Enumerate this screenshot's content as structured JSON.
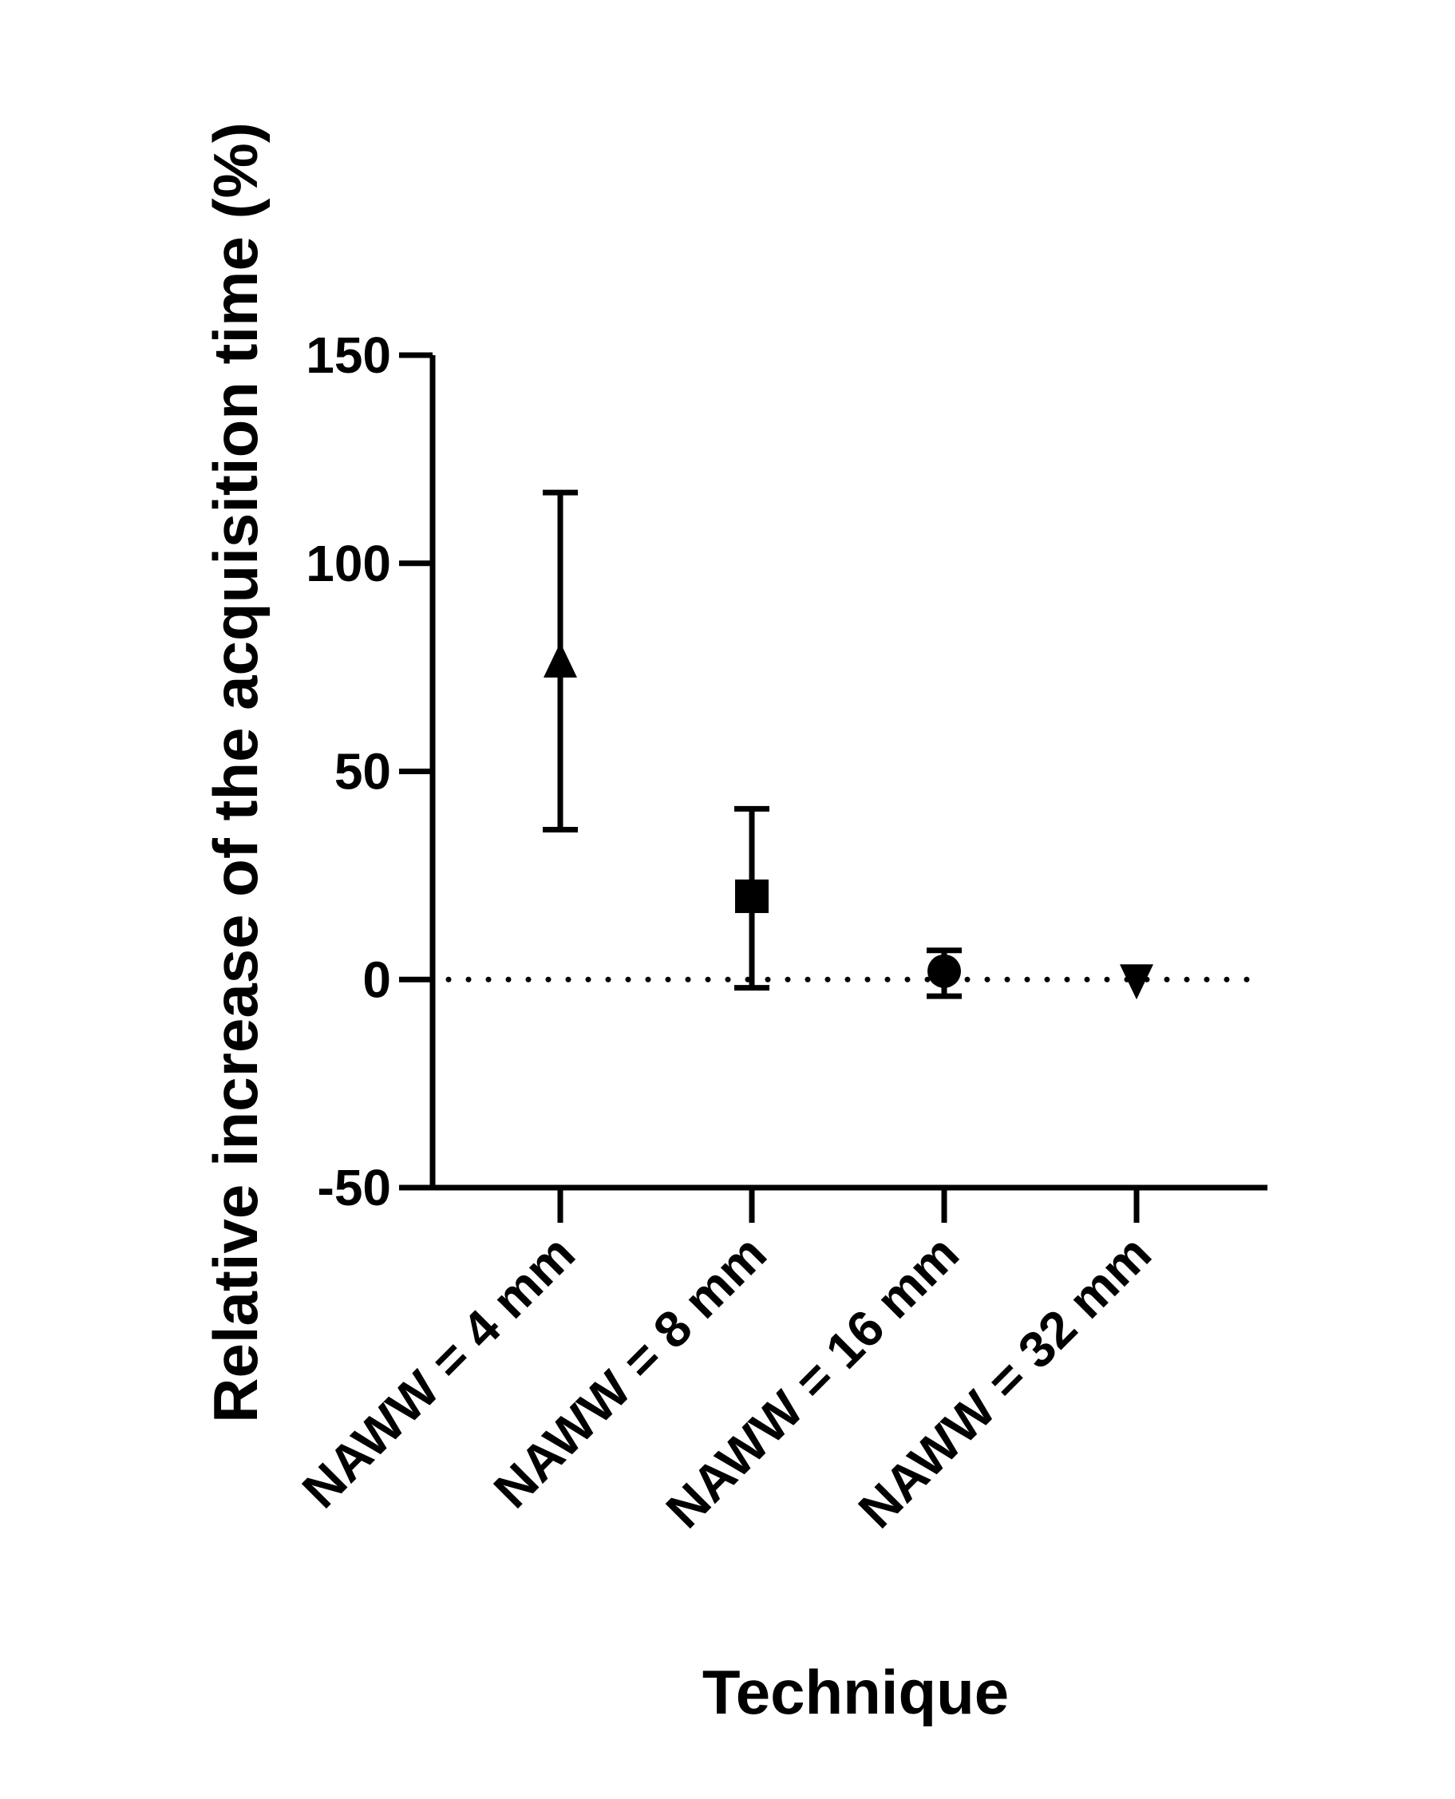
{
  "chart_data": {
    "type": "scatter",
    "title": "",
    "xlabel": "Technique",
    "ylabel": "Relative increase of the acquisition time (%)",
    "ylim": [
      -50,
      150
    ],
    "yticks": [
      "150",
      "100",
      "50",
      "0",
      "-50"
    ],
    "ytick_values": [
      150,
      100,
      50,
      0,
      -50
    ],
    "reference_line": {
      "y": 0,
      "style": "dotted"
    },
    "grid": false,
    "legend": "none",
    "categories": [
      "NAWW = 4 mm",
      "NAWW = 8 mm",
      "NAWW = 16 mm",
      "NAWW = 32 mm"
    ],
    "series": [
      {
        "markers": [
          "triangle-up",
          "square",
          "circle",
          "triangle-down"
        ],
        "values": [
          76,
          20,
          2,
          0
        ],
        "error_low": [
          36,
          -2,
          -4,
          0
        ],
        "error_high": [
          117,
          41,
          7,
          0
        ]
      }
    ],
    "colors": {
      "marks": "#000000",
      "background": "#ffffff"
    }
  }
}
